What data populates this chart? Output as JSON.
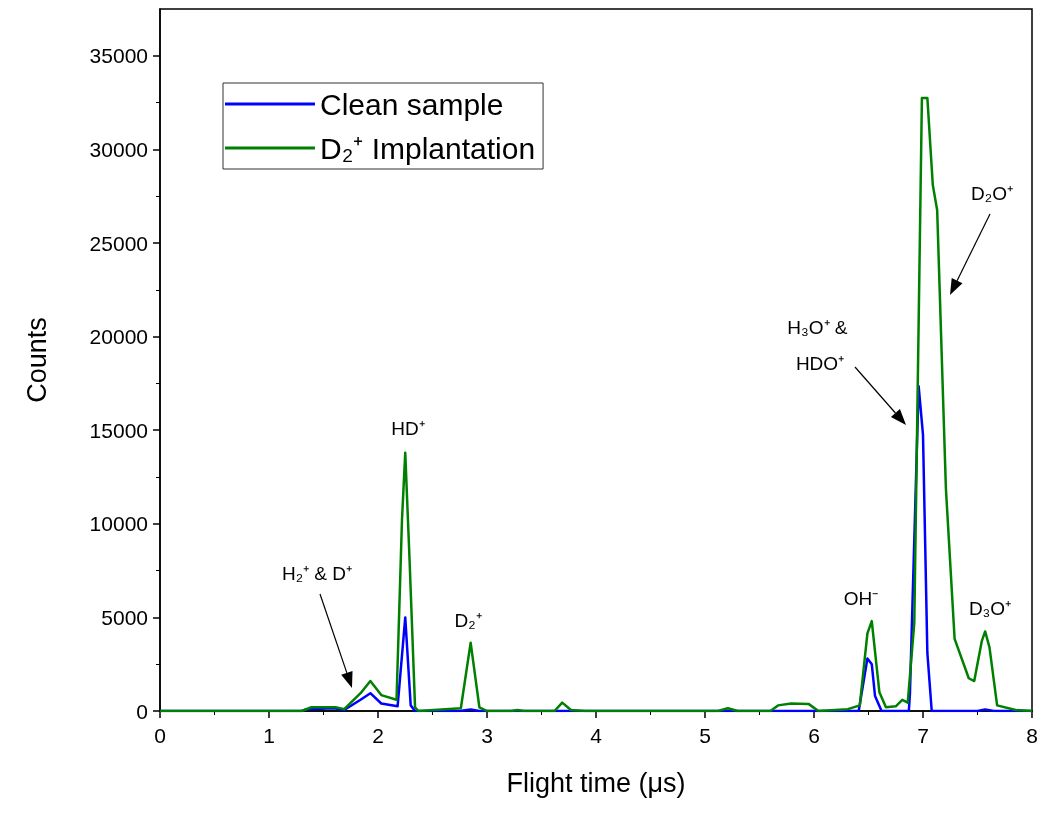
{
  "chart_data": {
    "type": "line",
    "xlabel": "Flight time (μs)",
    "ylabel": "Counts",
    "xlim": [
      0,
      8
    ],
    "xticks": [
      0,
      1,
      2,
      3,
      4,
      5,
      6,
      7,
      8
    ],
    "ylim": [
      0,
      37500
    ],
    "yticks": [
      0,
      5000,
      10000,
      15000,
      20000,
      25000,
      30000,
      35000
    ],
    "grid": false,
    "legend": "top left",
    "marker": "none",
    "line_style": "solid",
    "series": [
      {
        "name": "Clean sample",
        "color": "#0000ff",
        "x": [
          0,
          1.3,
          1.35,
          1.6,
          1.69,
          1.84,
          1.93,
          2.03,
          2.18,
          2.25,
          2.3,
          2.34,
          2.75,
          2.85,
          2.93,
          6.41,
          6.49,
          6.53,
          6.56,
          6.62,
          6.87,
          6.88,
          6.96,
          7.0,
          7.04,
          7.08,
          7.5,
          7.57,
          7.65,
          8
        ],
        "values": [
          0,
          0,
          100,
          150,
          50,
          600,
          950,
          400,
          250,
          5000,
          300,
          0,
          0,
          80,
          0,
          0,
          2800,
          2500,
          800,
          0,
          0,
          900,
          17350,
          14750,
          3100,
          0,
          0,
          80,
          0,
          0
        ]
      },
      {
        "name": "D₂⁺ Implantation",
        "color": "#008000",
        "x": [
          0,
          1.3,
          1.39,
          1.61,
          1.69,
          1.84,
          1.93,
          2.03,
          2.17,
          2.22,
          2.25,
          2.29,
          2.34,
          2.37,
          2.76,
          2.85,
          2.93,
          3.0,
          3.22,
          3.28,
          3.34,
          3.62,
          3.69,
          3.77,
          3.9,
          5.12,
          5.21,
          5.3,
          5.6,
          5.67,
          5.79,
          5.95,
          6.04,
          6.31,
          6.42,
          6.49,
          6.53,
          6.6,
          6.66,
          6.75,
          6.81,
          6.86,
          6.92,
          6.99,
          7.04,
          7.09,
          7.13,
          7.21,
          7.29,
          7.42,
          7.47,
          7.54,
          7.57,
          7.61,
          7.68,
          7.85,
          8
        ],
        "values": [
          0,
          0,
          200,
          200,
          100,
          950,
          1600,
          850,
          600,
          10200,
          13800,
          8000,
          200,
          0,
          150,
          3650,
          200,
          0,
          0,
          50,
          0,
          0,
          450,
          50,
          0,
          0,
          150,
          0,
          0,
          300,
          400,
          380,
          0,
          100,
          300,
          4150,
          4800,
          1000,
          200,
          250,
          600,
          450,
          4700,
          32750,
          32750,
          28100,
          26750,
          11900,
          3850,
          1750,
          1600,
          3750,
          4250,
          3400,
          300,
          50,
          0
        ]
      }
    ],
    "annotations": [
      "H₂⁺ & D⁺",
      "HD⁺",
      "D₂⁺",
      "OH⁻",
      "H₃O⁺ & HDO⁺",
      "D₂O⁺",
      "D₃O⁺"
    ]
  }
}
